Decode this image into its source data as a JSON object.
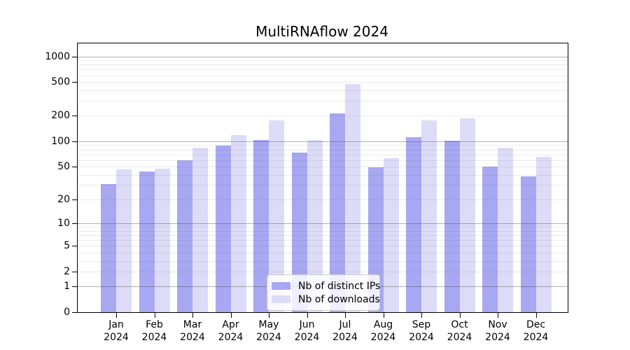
{
  "title": "MultiRNAflow 2024",
  "chart_data": {
    "type": "bar",
    "title": "MultiRNAflow 2024",
    "categories": [
      {
        "month": "Jan",
        "year": "2024"
      },
      {
        "month": "Feb",
        "year": "2024"
      },
      {
        "month": "Mar",
        "year": "2024"
      },
      {
        "month": "Apr",
        "year": "2024"
      },
      {
        "month": "May",
        "year": "2024"
      },
      {
        "month": "Jun",
        "year": "2024"
      },
      {
        "month": "Jul",
        "year": "2024"
      },
      {
        "month": "Aug",
        "year": "2024"
      },
      {
        "month": "Sep",
        "year": "2024"
      },
      {
        "month": "Oct",
        "year": "2024"
      },
      {
        "month": "Nov",
        "year": "2024"
      },
      {
        "month": "Dec",
        "year": "2024"
      }
    ],
    "series": [
      {
        "name": "Nb of distinct IPs",
        "color": "#a7a7f2",
        "values": [
          31,
          44,
          59,
          89,
          103,
          73,
          215,
          49,
          112,
          101,
          50,
          38
        ]
      },
      {
        "name": "Nb of downloads",
        "color": "#dcdcf8",
        "values": [
          46,
          47,
          84,
          118,
          175,
          104,
          470,
          63,
          178,
          186,
          84,
          66
        ]
      }
    ],
    "y_axis": {
      "scale": "log10(1+v)",
      "tick_values": [
        0,
        1,
        2,
        5,
        10,
        20,
        50,
        100,
        200,
        500,
        1000
      ],
      "major_gridline_values": [
        1,
        10,
        100,
        1000
      ],
      "ylim": [
        0,
        1400
      ]
    },
    "xlabel": "",
    "ylabel": "",
    "grid": true,
    "legend_position": "lower center inside plot",
    "colors": {
      "frame": "#000000",
      "major_grid": "#b4b4b4",
      "minor_grid": "#e9e9e9",
      "background": "#ffffff"
    }
  }
}
